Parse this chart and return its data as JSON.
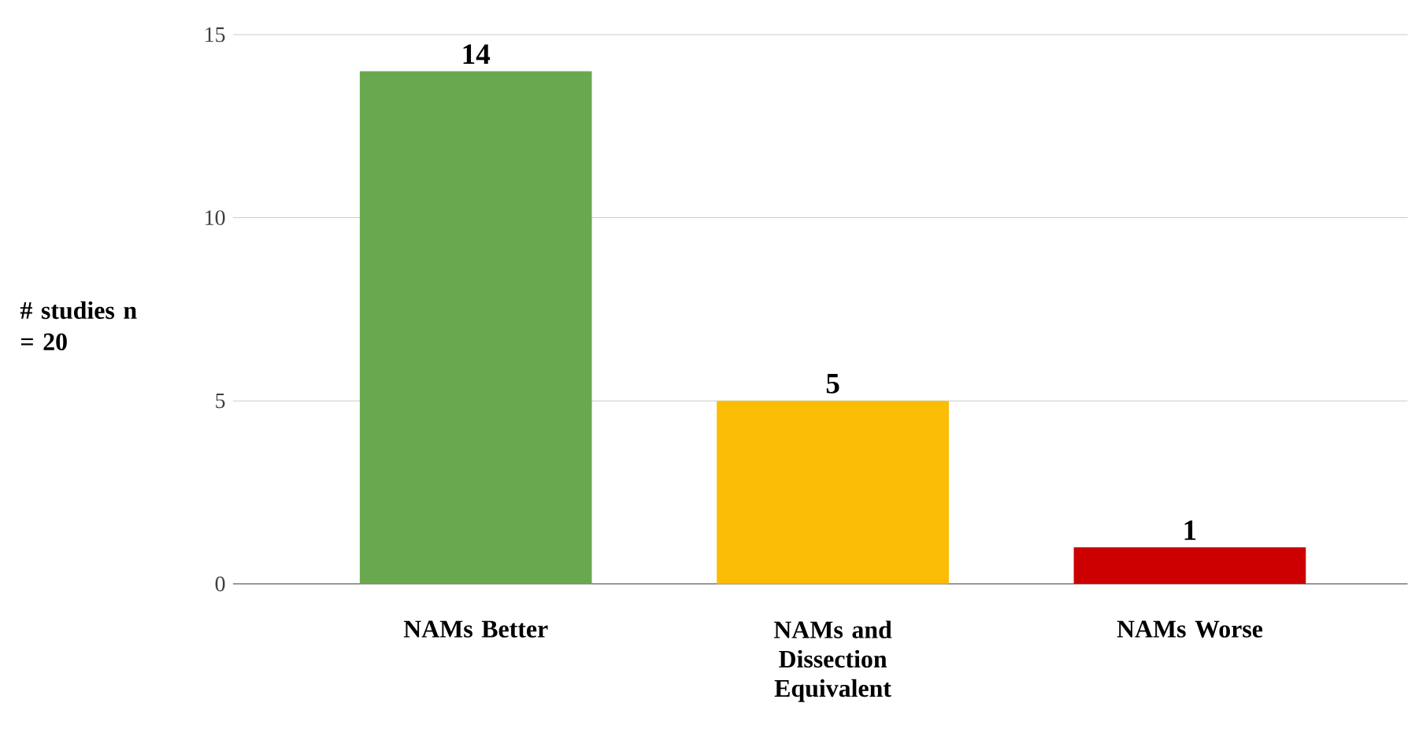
{
  "chart_data": {
    "type": "bar",
    "ylabel": "# studies n = 20",
    "categories": [
      "NAMs Better",
      "NAMs and Dissection Equivalent",
      "NAMs Worse"
    ],
    "values": [
      14,
      5,
      1
    ],
    "colors": [
      "#6aa84f",
      "#fbbc04",
      "#cc0000"
    ],
    "ylim": [
      0,
      15
    ],
    "yticks": [
      0,
      5,
      10,
      15
    ],
    "grid": "y",
    "data_labels": true
  }
}
